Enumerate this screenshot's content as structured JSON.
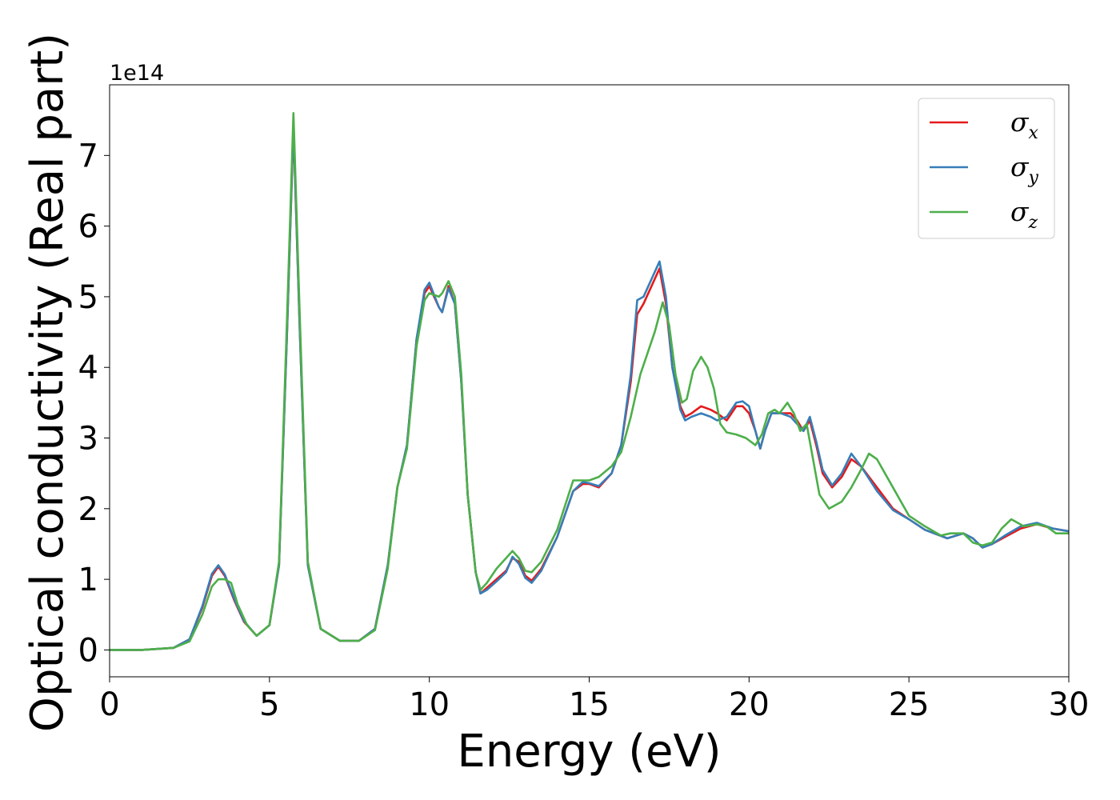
{
  "chart_data": {
    "type": "line",
    "xlabel": "Energy (eV)",
    "ylabel": "Optical conductivity (Real part)",
    "y_offset_label": "1e14",
    "y_scale": 100000000000000.0,
    "xlim": [
      0,
      30
    ],
    "ylim": [
      -0.38,
      8.0
    ],
    "x_ticks": [
      0,
      5,
      10,
      15,
      20,
      25,
      30
    ],
    "y_ticks": [
      0,
      1,
      2,
      3,
      4,
      5,
      6,
      7
    ],
    "grid": false,
    "legend_position": "top-right",
    "series": [
      {
        "name": "σ",
        "subscript": "x",
        "color": "#e41a1c",
        "points": [
          [
            0,
            0
          ],
          [
            1,
            0
          ],
          [
            2,
            0.03
          ],
          [
            2.5,
            0.15
          ],
          [
            2.9,
            0.6
          ],
          [
            3.2,
            1.05
          ],
          [
            3.4,
            1.18
          ],
          [
            3.6,
            1.05
          ],
          [
            3.9,
            0.7
          ],
          [
            4.2,
            0.4
          ],
          [
            4.6,
            0.2
          ],
          [
            5.0,
            0.35
          ],
          [
            5.3,
            1.2
          ],
          [
            5.55,
            4.5
          ],
          [
            5.75,
            7.4
          ],
          [
            5.95,
            4.5
          ],
          [
            6.2,
            1.2
          ],
          [
            6.6,
            0.3
          ],
          [
            7.2,
            0.13
          ],
          [
            7.8,
            0.13
          ],
          [
            8.3,
            0.3
          ],
          [
            8.7,
            1.2
          ],
          [
            9.0,
            2.3
          ],
          [
            9.3,
            2.9
          ],
          [
            9.6,
            4.4
          ],
          [
            9.85,
            5.05
          ],
          [
            10.0,
            5.15
          ],
          [
            10.3,
            4.85
          ],
          [
            10.4,
            4.78
          ],
          [
            10.6,
            5.15
          ],
          [
            10.8,
            4.9
          ],
          [
            11.0,
            3.8
          ],
          [
            11.2,
            2.2
          ],
          [
            11.45,
            1.1
          ],
          [
            11.6,
            0.8
          ],
          [
            11.8,
            0.88
          ],
          [
            12.1,
            1.0
          ],
          [
            12.4,
            1.12
          ],
          [
            12.6,
            1.3
          ],
          [
            12.8,
            1.25
          ],
          [
            13.0,
            1.05
          ],
          [
            13.2,
            0.98
          ],
          [
            13.5,
            1.15
          ],
          [
            14.0,
            1.6
          ],
          [
            14.5,
            2.25
          ],
          [
            14.8,
            2.35
          ],
          [
            15.0,
            2.35
          ],
          [
            15.3,
            2.3
          ],
          [
            15.7,
            2.5
          ],
          [
            16.0,
            2.9
          ],
          [
            16.3,
            3.8
          ],
          [
            16.5,
            4.75
          ],
          [
            16.7,
            4.9
          ],
          [
            16.9,
            5.1
          ],
          [
            17.2,
            5.4
          ],
          [
            17.4,
            4.9
          ],
          [
            17.6,
            4.0
          ],
          [
            17.85,
            3.45
          ],
          [
            18.0,
            3.3
          ],
          [
            18.2,
            3.35
          ],
          [
            18.5,
            3.45
          ],
          [
            18.8,
            3.4
          ],
          [
            19.0,
            3.35
          ],
          [
            19.3,
            3.25
          ],
          [
            19.6,
            3.45
          ],
          [
            19.8,
            3.45
          ],
          [
            20.0,
            3.35
          ],
          [
            20.2,
            3.1
          ],
          [
            20.35,
            2.85
          ],
          [
            20.5,
            3.1
          ],
          [
            20.7,
            3.35
          ],
          [
            21.0,
            3.35
          ],
          [
            21.3,
            3.35
          ],
          [
            21.5,
            3.25
          ],
          [
            21.7,
            3.1
          ],
          [
            21.9,
            3.25
          ],
          [
            22.1,
            2.9
          ],
          [
            22.3,
            2.5
          ],
          [
            22.6,
            2.3
          ],
          [
            22.9,
            2.45
          ],
          [
            23.2,
            2.7
          ],
          [
            23.5,
            2.6
          ],
          [
            24.0,
            2.3
          ],
          [
            24.5,
            2.0
          ],
          [
            25.0,
            1.85
          ],
          [
            25.5,
            1.7
          ],
          [
            26.2,
            1.58
          ],
          [
            26.7,
            1.65
          ],
          [
            27.0,
            1.58
          ],
          [
            27.3,
            1.45
          ],
          [
            27.6,
            1.5
          ],
          [
            28.0,
            1.6
          ],
          [
            28.5,
            1.72
          ],
          [
            29.0,
            1.78
          ],
          [
            29.5,
            1.72
          ],
          [
            30,
            1.68
          ]
        ]
      },
      {
        "name": "σ",
        "subscript": "y",
        "color": "#377eb8",
        "points": [
          [
            0,
            0
          ],
          [
            1,
            0
          ],
          [
            2,
            0.03
          ],
          [
            2.5,
            0.15
          ],
          [
            2.9,
            0.62
          ],
          [
            3.2,
            1.08
          ],
          [
            3.4,
            1.2
          ],
          [
            3.6,
            1.07
          ],
          [
            3.9,
            0.72
          ],
          [
            4.2,
            0.41
          ],
          [
            4.6,
            0.2
          ],
          [
            5.0,
            0.35
          ],
          [
            5.3,
            1.2
          ],
          [
            5.55,
            4.5
          ],
          [
            5.75,
            7.45
          ],
          [
            5.95,
            4.5
          ],
          [
            6.2,
            1.2
          ],
          [
            6.6,
            0.3
          ],
          [
            7.2,
            0.13
          ],
          [
            7.8,
            0.13
          ],
          [
            8.3,
            0.3
          ],
          [
            8.7,
            1.2
          ],
          [
            9.0,
            2.3
          ],
          [
            9.3,
            2.9
          ],
          [
            9.6,
            4.4
          ],
          [
            9.85,
            5.1
          ],
          [
            10.0,
            5.2
          ],
          [
            10.3,
            4.85
          ],
          [
            10.4,
            4.78
          ],
          [
            10.6,
            5.12
          ],
          [
            10.8,
            4.9
          ],
          [
            11.0,
            3.8
          ],
          [
            11.2,
            2.2
          ],
          [
            11.45,
            1.1
          ],
          [
            11.6,
            0.8
          ],
          [
            11.8,
            0.85
          ],
          [
            12.1,
            0.97
          ],
          [
            12.4,
            1.1
          ],
          [
            12.6,
            1.32
          ],
          [
            12.8,
            1.22
          ],
          [
            13.0,
            1.02
          ],
          [
            13.2,
            0.95
          ],
          [
            13.5,
            1.12
          ],
          [
            14.0,
            1.6
          ],
          [
            14.5,
            2.25
          ],
          [
            14.8,
            2.38
          ],
          [
            15.0,
            2.36
          ],
          [
            15.3,
            2.32
          ],
          [
            15.7,
            2.5
          ],
          [
            16.0,
            2.9
          ],
          [
            16.3,
            3.9
          ],
          [
            16.5,
            4.95
          ],
          [
            16.7,
            5.0
          ],
          [
            16.9,
            5.2
          ],
          [
            17.2,
            5.5
          ],
          [
            17.4,
            5.0
          ],
          [
            17.6,
            4.0
          ],
          [
            17.85,
            3.4
          ],
          [
            18.0,
            3.25
          ],
          [
            18.2,
            3.3
          ],
          [
            18.5,
            3.35
          ],
          [
            18.8,
            3.3
          ],
          [
            19.0,
            3.25
          ],
          [
            19.3,
            3.3
          ],
          [
            19.6,
            3.5
          ],
          [
            19.8,
            3.52
          ],
          [
            20.0,
            3.45
          ],
          [
            20.2,
            3.1
          ],
          [
            20.35,
            2.85
          ],
          [
            20.5,
            3.1
          ],
          [
            20.7,
            3.35
          ],
          [
            21.0,
            3.35
          ],
          [
            21.3,
            3.3
          ],
          [
            21.5,
            3.2
          ],
          [
            21.7,
            3.1
          ],
          [
            21.9,
            3.3
          ],
          [
            22.1,
            2.95
          ],
          [
            22.3,
            2.55
          ],
          [
            22.6,
            2.33
          ],
          [
            22.9,
            2.5
          ],
          [
            23.2,
            2.78
          ],
          [
            23.5,
            2.6
          ],
          [
            24.0,
            2.25
          ],
          [
            24.5,
            1.98
          ],
          [
            25.0,
            1.85
          ],
          [
            25.5,
            1.7
          ],
          [
            26.2,
            1.58
          ],
          [
            26.7,
            1.65
          ],
          [
            27.0,
            1.58
          ],
          [
            27.3,
            1.45
          ],
          [
            27.6,
            1.5
          ],
          [
            28.0,
            1.62
          ],
          [
            28.5,
            1.75
          ],
          [
            29.0,
            1.8
          ],
          [
            29.5,
            1.72
          ],
          [
            30,
            1.68
          ]
        ]
      },
      {
        "name": "σ",
        "subscript": "z",
        "color": "#4daf4a",
        "points": [
          [
            0,
            0
          ],
          [
            1,
            0
          ],
          [
            2,
            0.03
          ],
          [
            2.5,
            0.12
          ],
          [
            2.9,
            0.5
          ],
          [
            3.2,
            0.9
          ],
          [
            3.4,
            1.0
          ],
          [
            3.6,
            1.0
          ],
          [
            3.8,
            0.95
          ],
          [
            4.0,
            0.65
          ],
          [
            4.3,
            0.35
          ],
          [
            4.6,
            0.2
          ],
          [
            5.0,
            0.35
          ],
          [
            5.3,
            1.25
          ],
          [
            5.55,
            4.7
          ],
          [
            5.75,
            7.6
          ],
          [
            5.95,
            4.7
          ],
          [
            6.2,
            1.25
          ],
          [
            6.6,
            0.3
          ],
          [
            7.2,
            0.13
          ],
          [
            7.8,
            0.13
          ],
          [
            8.3,
            0.28
          ],
          [
            8.7,
            1.15
          ],
          [
            9.0,
            2.3
          ],
          [
            9.3,
            2.85
          ],
          [
            9.6,
            4.3
          ],
          [
            9.85,
            4.95
          ],
          [
            10.0,
            5.05
          ],
          [
            10.3,
            5.0
          ],
          [
            10.4,
            5.05
          ],
          [
            10.6,
            5.22
          ],
          [
            10.8,
            5.0
          ],
          [
            11.0,
            3.9
          ],
          [
            11.2,
            2.2
          ],
          [
            11.45,
            1.1
          ],
          [
            11.6,
            0.85
          ],
          [
            11.8,
            0.95
          ],
          [
            12.1,
            1.15
          ],
          [
            12.4,
            1.3
          ],
          [
            12.6,
            1.4
          ],
          [
            12.8,
            1.3
          ],
          [
            13.0,
            1.12
          ],
          [
            13.2,
            1.1
          ],
          [
            13.5,
            1.25
          ],
          [
            14.0,
            1.7
          ],
          [
            14.5,
            2.4
          ],
          [
            14.8,
            2.4
          ],
          [
            15.0,
            2.4
          ],
          [
            15.3,
            2.45
          ],
          [
            15.7,
            2.6
          ],
          [
            16.0,
            2.8
          ],
          [
            16.3,
            3.3
          ],
          [
            16.6,
            3.9
          ],
          [
            16.9,
            4.3
          ],
          [
            17.05,
            4.5
          ],
          [
            17.3,
            4.92
          ],
          [
            17.5,
            4.6
          ],
          [
            17.7,
            3.9
          ],
          [
            17.9,
            3.5
          ],
          [
            18.05,
            3.55
          ],
          [
            18.25,
            3.95
          ],
          [
            18.5,
            4.15
          ],
          [
            18.7,
            4.0
          ],
          [
            18.9,
            3.7
          ],
          [
            19.1,
            3.2
          ],
          [
            19.3,
            3.08
          ],
          [
            19.6,
            3.05
          ],
          [
            19.9,
            3.0
          ],
          [
            20.2,
            2.9
          ],
          [
            20.4,
            3.05
          ],
          [
            20.6,
            3.35
          ],
          [
            20.8,
            3.4
          ],
          [
            20.95,
            3.35
          ],
          [
            21.2,
            3.5
          ],
          [
            21.4,
            3.35
          ],
          [
            21.6,
            3.1
          ],
          [
            21.8,
            3.2
          ],
          [
            22.0,
            2.7
          ],
          [
            22.2,
            2.2
          ],
          [
            22.5,
            2.0
          ],
          [
            22.9,
            2.1
          ],
          [
            23.2,
            2.3
          ],
          [
            23.5,
            2.55
          ],
          [
            23.75,
            2.78
          ],
          [
            24.0,
            2.7
          ],
          [
            24.5,
            2.3
          ],
          [
            25.0,
            1.9
          ],
          [
            25.5,
            1.75
          ],
          [
            26.0,
            1.62
          ],
          [
            26.3,
            1.65
          ],
          [
            26.7,
            1.65
          ],
          [
            27.0,
            1.52
          ],
          [
            27.3,
            1.48
          ],
          [
            27.6,
            1.52
          ],
          [
            27.9,
            1.72
          ],
          [
            28.2,
            1.85
          ],
          [
            28.6,
            1.75
          ],
          [
            29.0,
            1.78
          ],
          [
            29.3,
            1.75
          ],
          [
            29.6,
            1.65
          ],
          [
            30,
            1.65
          ]
        ]
      }
    ]
  }
}
